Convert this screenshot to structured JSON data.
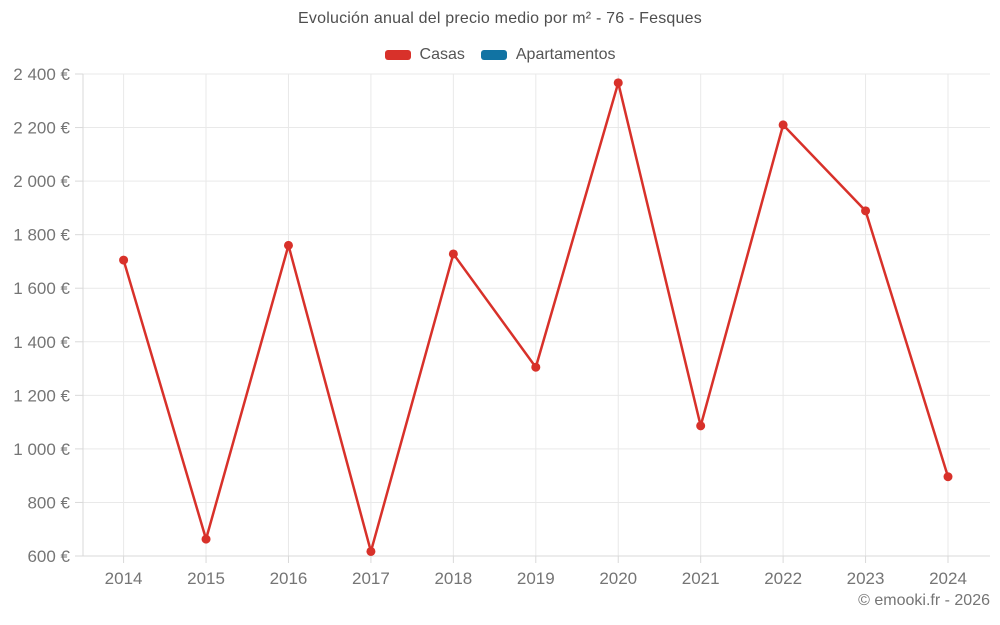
{
  "title": "Evolución anual del precio medio por m² - 76 - Fesques",
  "footer": "© emooki.fr - 2026",
  "legend": [
    {
      "label": "Casas",
      "color": "#d8312a"
    },
    {
      "label": "Apartamentos",
      "color": "#1173a3"
    }
  ],
  "chart_data": {
    "type": "line",
    "title": "Evolución anual del precio medio por m² - 76 - Fesques",
    "xlabel": "",
    "ylabel": "",
    "categories": [
      "2014",
      "2015",
      "2016",
      "2017",
      "2018",
      "2019",
      "2020",
      "2021",
      "2022",
      "2023",
      "2024"
    ],
    "series": [
      {
        "name": "Casas",
        "color": "#d8312a",
        "values": [
          1705,
          663,
          1760,
          617,
          1728,
          1305,
          2367,
          1086,
          2210,
          1889,
          896
        ]
      },
      {
        "name": "Apartamentos",
        "color": "#1173a3",
        "values": []
      }
    ],
    "ylim": [
      600,
      2400
    ],
    "yticks": [
      600,
      800,
      1000,
      1200,
      1400,
      1600,
      1800,
      2000,
      2200,
      2400
    ],
    "ytick_labels": [
      "600 €",
      "800 €",
      "1 000 €",
      "1 200 €",
      "1 400 €",
      "1 600 €",
      "1 800 €",
      "2 000 €",
      "2 200 €",
      "2 400 €"
    ],
    "grid": true,
    "legend_position": "top",
    "currency": "EUR"
  }
}
